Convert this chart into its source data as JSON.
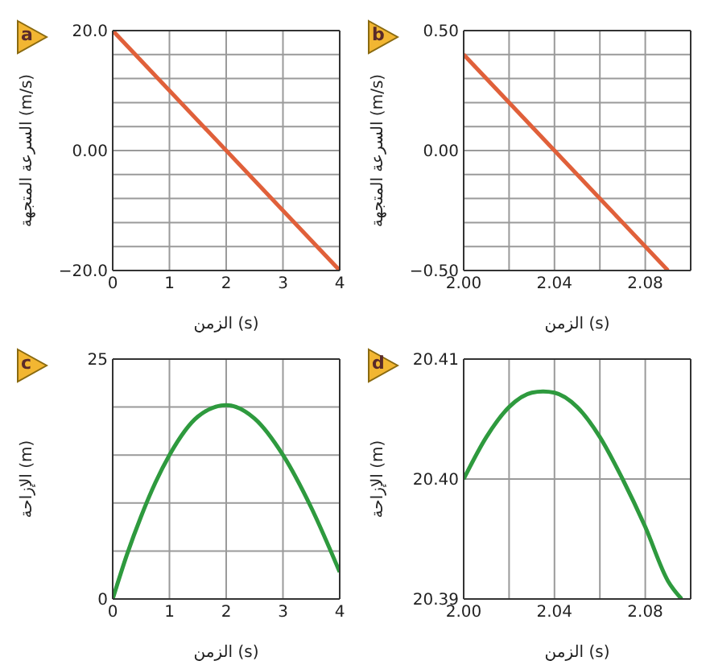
{
  "chart_data": [
    {
      "type": "line",
      "annotations": [
        "a"
      ],
      "xlabel": "الزمن (s)",
      "ylabel": "السرعة المتجهة (m/s)",
      "xlim": [
        0,
        4
      ],
      "ylim": [
        -20,
        20
      ],
      "xticks": [
        0,
        1,
        2,
        3,
        4
      ],
      "yticks": [
        {
          "value": -20,
          "label": "−20.0"
        },
        {
          "value": -16,
          "label": null
        },
        {
          "value": -12,
          "label": null
        },
        {
          "value": -8,
          "label": null
        },
        {
          "value": -4,
          "label": null
        },
        {
          "value": 0,
          "label": "0.00"
        },
        {
          "value": 4,
          "label": null
        },
        {
          "value": 8,
          "label": null
        },
        {
          "value": 12,
          "label": null
        },
        {
          "value": 16,
          "label": null
        },
        {
          "value": 20,
          "label": "20.0"
        }
      ],
      "grid": true,
      "series": [
        {
          "color": "#e0603a",
          "x": [
            0,
            4
          ],
          "values": [
            20,
            -20
          ]
        }
      ]
    },
    {
      "type": "line",
      "annotations": [
        "b"
      ],
      "xlabel": "الزمن (s)",
      "ylabel": "السرعة المتجهة (m/s)",
      "xlim": [
        2.0,
        2.1
      ],
      "ylim": [
        -0.5,
        0.5
      ],
      "xticks": [
        {
          "value": 2.0,
          "label": "2.00"
        },
        {
          "value": 2.02,
          "label": null
        },
        {
          "value": 2.04,
          "label": "2.04"
        },
        {
          "value": 2.06,
          "label": null
        },
        {
          "value": 2.08,
          "label": "2.08"
        }
      ],
      "yticks": [
        {
          "value": -0.5,
          "label": "−0.50"
        },
        {
          "value": -0.4,
          "label": null
        },
        {
          "value": -0.3,
          "label": null
        },
        {
          "value": -0.2,
          "label": null
        },
        {
          "value": -0.1,
          "label": null
        },
        {
          "value": 0,
          "label": "0.00"
        },
        {
          "value": 0.1,
          "label": null
        },
        {
          "value": 0.2,
          "label": null
        },
        {
          "value": 0.3,
          "label": null
        },
        {
          "value": 0.4,
          "label": null
        },
        {
          "value": 0.5,
          "label": "0.50"
        }
      ],
      "grid": true,
      "series": [
        {
          "color": "#e0603a",
          "x": [
            2.0,
            2.09
          ],
          "values": [
            0.4,
            -0.5
          ]
        }
      ]
    },
    {
      "type": "line",
      "annotations": [
        "c"
      ],
      "xlabel": "الزمن (s)",
      "ylabel": "الإزاحة (m)",
      "xlim": [
        0,
        4
      ],
      "ylim": [
        0,
        25
      ],
      "xticks": [
        0,
        1,
        2,
        3,
        4
      ],
      "yticks": [
        0,
        {
          "value": 5,
          "label": null
        },
        {
          "value": 10,
          "label": null
        },
        {
          "value": 15,
          "label": null
        },
        {
          "value": 20,
          "label": null
        },
        25
      ],
      "grid": true,
      "series": [
        {
          "color": "#2e9a3e",
          "x": [
            0,
            0.25,
            0.5,
            0.75,
            1,
            1.5,
            2,
            2.5,
            3,
            3.5,
            4
          ],
          "values": [
            0,
            4.6,
            8.6,
            12.1,
            15,
            19,
            20.2,
            18.8,
            15,
            9.5,
            2.8
          ]
        }
      ]
    },
    {
      "type": "line",
      "annotations": [
        "d"
      ],
      "xlabel": "الزمن (s)",
      "ylabel": "الإزاحة (m)",
      "xlim": [
        2.0,
        2.1
      ],
      "ylim": [
        20.39,
        20.41
      ],
      "xticks": [
        {
          "value": 2.0,
          "label": "2.00"
        },
        {
          "value": 2.02,
          "label": null
        },
        {
          "value": 2.04,
          "label": "2.04"
        },
        {
          "value": 2.06,
          "label": null
        },
        {
          "value": 2.08,
          "label": "2.08"
        }
      ],
      "yticks": [
        20.39,
        {
          "value": 20.4,
          "label": "20.40"
        },
        20.41
      ],
      "grid": true,
      "series": [
        {
          "color": "#2e9a3e",
          "x": [
            2.0,
            2.01,
            2.02,
            2.03,
            2.035,
            2.04,
            2.05,
            2.06,
            2.07,
            2.08,
            2.09,
            2.096
          ],
          "values": [
            20.4,
            20.4035,
            20.406,
            20.4072,
            20.4073,
            20.4072,
            20.406,
            20.4035,
            20.4,
            20.396,
            20.3915,
            20.39
          ]
        }
      ]
    }
  ]
}
